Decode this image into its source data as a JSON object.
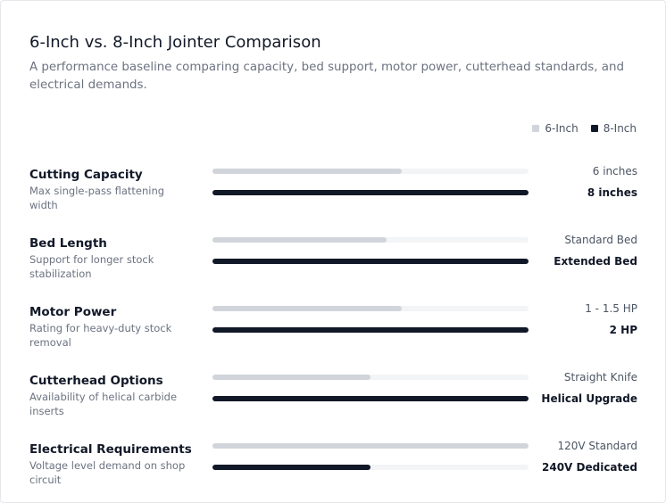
{
  "chart_data": {
    "type": "bar",
    "orientation": "horizontal",
    "title": "6-Inch vs. 8-Inch Jointer Comparison",
    "subtitle": "A performance baseline comparing capacity, bed support, motor power, cutterhead standards, and electrical demands.",
    "categories": [
      "Cutting Capacity",
      "Bed Length",
      "Motor Power",
      "Cutterhead Options",
      "Electrical Requirements"
    ],
    "descriptions": [
      "Max single-pass flattening width",
      "Support for longer stock stabilization",
      "Rating for heavy-duty stock removal",
      "Availability of helical carbide inserts",
      "Voltage level demand on shop circuit"
    ],
    "xlim": [
      0,
      100
    ],
    "track_color": "#f3f4f6",
    "legend": "top-right",
    "series": [
      {
        "name": "6-Inch",
        "color": "#d1d5db",
        "values": [
          60,
          55,
          60,
          50,
          100
        ],
        "labels": [
          "6 inches",
          "Standard Bed",
          "1 - 1.5 HP",
          "Straight Knife",
          "120V Standard"
        ]
      },
      {
        "name": "8-Inch",
        "color": "#111827",
        "values": [
          100,
          100,
          100,
          100,
          50
        ],
        "labels": [
          "8 inches",
          "Extended Bed",
          "2 HP",
          "Helical Upgrade",
          "240V Dedicated"
        ]
      }
    ]
  }
}
